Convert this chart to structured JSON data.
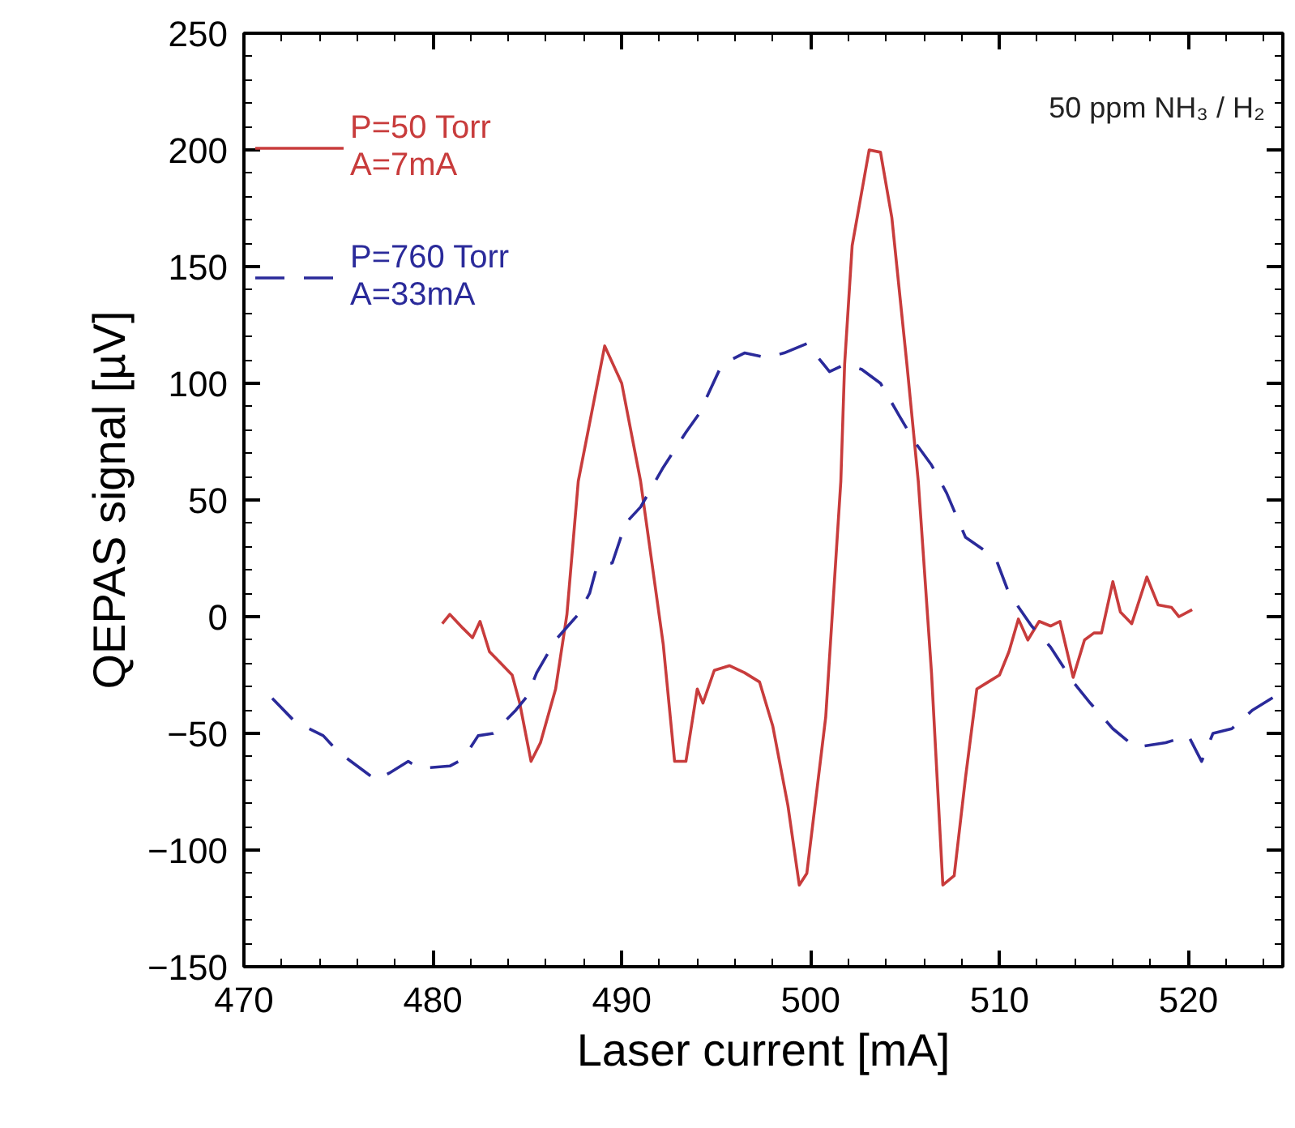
{
  "chart_data": {
    "type": "line",
    "xlabel": "Laser current [mA]",
    "ylabel": "QEPAS signal [µV]",
    "annotations": [
      "50 ppm NH₃ / H₂"
    ],
    "xlim": [
      470,
      525
    ],
    "xticks": [
      470,
      480,
      490,
      500,
      510,
      520
    ],
    "ylim": [
      -150,
      250
    ],
    "yticks": [
      -150,
      -100,
      -50,
      0,
      50,
      100,
      150,
      200,
      250
    ],
    "grid": false,
    "legend": "top left",
    "series": [
      {
        "name": "P=50 Torr\nA=7mA",
        "color": "#c83c3c",
        "line_style": "solid",
        "x": [
          480.5,
          480.9,
          481.6,
          482.1,
          482.5,
          483,
          483.6,
          484.2,
          484.6,
          485.2,
          485.7,
          486.5,
          487.1,
          487.7,
          489.1,
          490,
          491,
          491.6,
          492.2,
          492.8,
          493.4,
          494,
          494.3,
          494.9,
          495.7,
          496.5,
          497.3,
          498,
          498.8,
          499.4,
          499.8,
          500.8,
          501.6,
          501.8,
          502.2,
          503.1,
          503.7,
          504.3,
          505.1,
          505.7,
          506.4,
          507,
          507.6,
          508.2,
          508.8,
          509.4,
          510,
          510.5,
          511,
          511.5,
          512.1,
          512.7,
          513.2,
          513.9,
          514.5,
          515,
          515.4,
          516,
          516.4,
          517,
          517.8,
          518.4,
          519.1,
          519.5,
          520.2
        ],
        "values": [
          -3,
          1,
          -5,
          -9,
          -2,
          -15,
          -20,
          -25,
          -37,
          -62,
          -54,
          -31,
          1,
          58,
          116,
          100,
          58,
          23,
          -12,
          -62,
          -62,
          -31,
          -37,
          -23,
          -21,
          -24,
          -28,
          -47,
          -81,
          -115,
          -110,
          -43,
          58,
          108,
          159,
          200,
          199,
          171,
          108,
          58,
          -24,
          -115,
          -111,
          -69,
          -31,
          -28,
          -25,
          -15,
          -1,
          -10,
          -2,
          -4,
          -2,
          -26,
          -10,
          -7,
          -7,
          15,
          2,
          -3,
          17,
          5,
          4,
          0,
          3
        ]
      },
      {
        "name": "P=760 Torr\nA=33mA",
        "color": "#2a2a9a",
        "line_style": "dashed",
        "x": [
          471.5,
          472.7,
          474.2,
          475,
          477,
          477.7,
          478.7,
          479.3,
          480.9,
          481.6,
          482.4,
          483.2,
          484.4,
          485,
          485.5,
          486.5,
          487.7,
          488.3,
          488.7,
          489.5,
          490.2,
          491,
          492.2,
          493.4,
          494.1,
          495.3,
          496.5,
          497.7,
          498.6,
          499.8,
          501,
          501.8,
          502.7,
          503.7,
          504.7,
          505.5,
          506.4,
          507.2,
          508.2,
          509.8,
          510.5,
          511.7,
          512.7,
          513.9,
          514.8,
          516,
          517.2,
          518.8,
          520,
          520.7,
          521.3,
          522.3,
          523.4,
          525
        ],
        "values": [
          -35,
          -45,
          -51,
          -58,
          -70,
          -67,
          -62,
          -65,
          -64,
          -61,
          -51,
          -50,
          -40,
          -34,
          -24,
          -10,
          1,
          10,
          22,
          23,
          40,
          47,
          64,
          79,
          87,
          108,
          113,
          111,
          113,
          117,
          105,
          108,
          106,
          100,
          86,
          75,
          65,
          53,
          34,
          25,
          10,
          -4,
          -13,
          -28,
          -37,
          -48,
          -56,
          -54,
          -51,
          -62,
          -50,
          -48,
          -40,
          -32
        ]
      }
    ]
  }
}
